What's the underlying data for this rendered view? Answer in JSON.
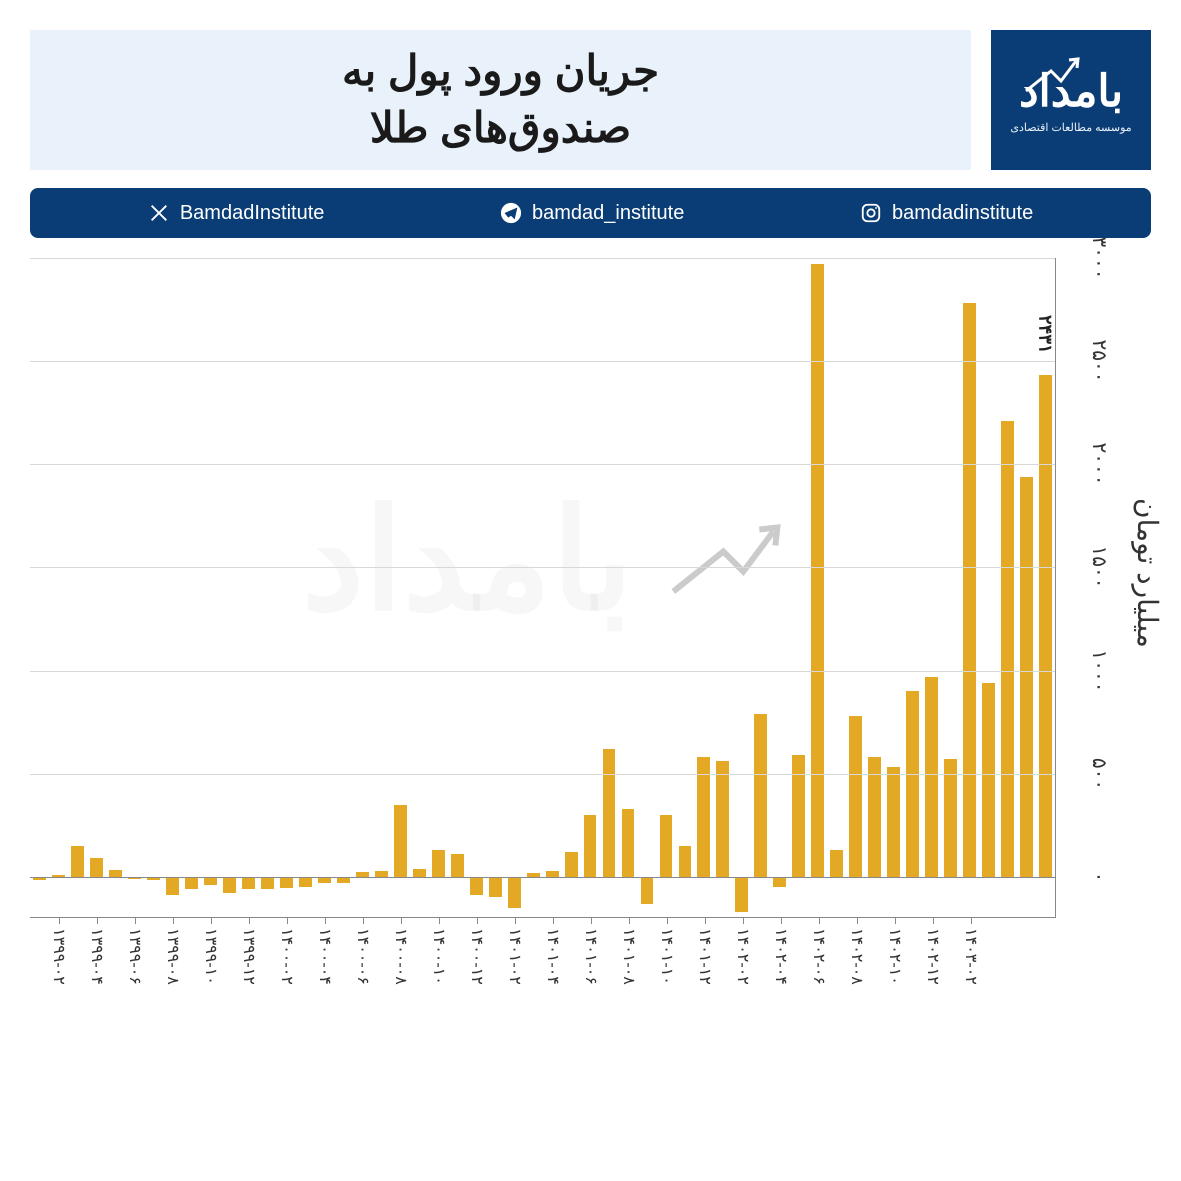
{
  "brand": {
    "name": "بامداد",
    "tagline": "موسسه مطالعات اقتصادی"
  },
  "title": {
    "line1": "جریان ورود پول به",
    "line2": "صندوق‌های طلا"
  },
  "social": {
    "x": {
      "handle": "BamdadInstitute"
    },
    "telegram": {
      "handle": "bamdad_institute"
    },
    "instagram": {
      "handle": "bamdadinstitute"
    }
  },
  "chart": {
    "type": "bar",
    "y_axis_title": "میلیارد تومان",
    "ylim_min": -200,
    "ylim_max": 3000,
    "ytick_step": 500,
    "y_tick_labels": [
      "۰",
      "۵۰۰",
      "۱۰۰۰",
      "۱۵۰۰",
      "۲۰۰۰",
      "۲۵۰۰",
      "۳۰۰۰"
    ],
    "bar_color": "#e3a924",
    "grid_color": "#d8d8d8",
    "axis_color": "#888888",
    "background_color": "#ffffff",
    "label_fontsize": 16,
    "last_value_label": "۲۴۳۱",
    "x_labels_visible": [
      "۱۳۹۹-۰۲",
      "۱۳۹۹-۰۴",
      "۱۳۹۹-۰۶",
      "۱۳۹۹-۰۸",
      "۱۳۹۹-۱۰",
      "۱۳۹۹-۱۲",
      "۱۴۰۰-۰۲",
      "۱۴۰۰-۰۴",
      "۱۴۰۰-۰۶",
      "۱۴۰۰-۰۸",
      "۱۴۰۰-۱۰",
      "۱۴۰۰-۱۲",
      "۱۴۰۱-۰۲",
      "۱۴۰۱-۰۴",
      "۱۴۰۱-۰۶",
      "۱۴۰۱-۰۸",
      "۱۴۰۱-۱۰",
      "۱۴۰۱-۱۲",
      "۱۴۰۲-۰۲",
      "۱۴۰۲-۰۴",
      "۱۴۰۲-۰۶",
      "۱۴۰۲-۰۸",
      "۱۴۰۲-۱۰",
      "۱۴۰۲-۱۲",
      "۱۴۰۳-۰۲"
    ],
    "series": [
      {
        "x": "۱۳۹۹-۰۱",
        "v": -15
      },
      {
        "x": "۱۳۹۹-۰۲",
        "v": 10
      },
      {
        "x": "۱۳۹۹-۰۳",
        "v": 150
      },
      {
        "x": "۱۳۹۹-۰۴",
        "v": 90
      },
      {
        "x": "۱۳۹۹-۰۵",
        "v": 35
      },
      {
        "x": "۱۳۹۹-۰۶",
        "v": -10
      },
      {
        "x": "۱۳۹۹-۰۷",
        "v": -15
      },
      {
        "x": "۱۳۹۹-۰۸",
        "v": -90
      },
      {
        "x": "۱۳۹۹-۰۹",
        "v": -60
      },
      {
        "x": "۱۳۹۹-۱۰",
        "v": -40
      },
      {
        "x": "۱۳۹۹-۱۱",
        "v": -80
      },
      {
        "x": "۱۳۹۹-۱۲",
        "v": -60
      },
      {
        "x": "۱۴۰۰-۰۱",
        "v": -60
      },
      {
        "x": "۱۴۰۰-۰۲",
        "v": -55
      },
      {
        "x": "۱۴۰۰-۰۳",
        "v": -50
      },
      {
        "x": "۱۴۰۰-۰۴",
        "v": -30
      },
      {
        "x": "۱۴۰۰-۰۵",
        "v": -30
      },
      {
        "x": "۱۴۰۰-۰۶",
        "v": 25
      },
      {
        "x": "۱۴۰۰-۰۷",
        "v": 30
      },
      {
        "x": "۱۴۰۰-۰۸",
        "v": 350
      },
      {
        "x": "۱۴۰۰-۰۹",
        "v": 40
      },
      {
        "x": "۱۴۰۰-۱۰",
        "v": 130
      },
      {
        "x": "۱۴۰۰-۱۱",
        "v": 110
      },
      {
        "x": "۱۴۰۰-۱۲",
        "v": -90
      },
      {
        "x": "۱۴۰۱-۰۱",
        "v": -100
      },
      {
        "x": "۱۴۰۱-۰۲",
        "v": -150
      },
      {
        "x": "۱۴۰۱-۰۳",
        "v": 20
      },
      {
        "x": "۱۴۰۱-۰۴",
        "v": 30
      },
      {
        "x": "۱۴۰۱-۰۵",
        "v": 120
      },
      {
        "x": "۱۴۰۱-۰۶",
        "v": 300
      },
      {
        "x": "۱۴۰۱-۰۷",
        "v": 620
      },
      {
        "x": "۱۴۰۱-۰۸",
        "v": 330
      },
      {
        "x": "۱۴۰۱-۰۹",
        "v": -130
      },
      {
        "x": "۱۴۰۱-۱۰",
        "v": 300
      },
      {
        "x": "۱۴۰۱-۱۱",
        "v": 150
      },
      {
        "x": "۱۴۰۱-۱۲",
        "v": 580
      },
      {
        "x": "۱۴۰۲-۰۱",
        "v": 560
      },
      {
        "x": "۱۴۰۲-۰۲",
        "v": -170
      },
      {
        "x": "۱۴۰۲-۰۳",
        "v": 790
      },
      {
        "x": "۱۴۰۲-۰۴",
        "v": -50
      },
      {
        "x": "۱۴۰۲-۰۵",
        "v": 590
      },
      {
        "x": "۱۴۰۲-۰۶",
        "v": 2970
      },
      {
        "x": "۱۴۰۲-۰۷",
        "v": 130
      },
      {
        "x": "۱۴۰۲-۰۸",
        "v": 780
      },
      {
        "x": "۱۴۰۲-۰۹",
        "v": 580
      },
      {
        "x": "۱۴۰۲-۱۰",
        "v": 530
      },
      {
        "x": "۱۴۰۲-۱۱",
        "v": 900
      },
      {
        "x": "۱۴۰۲-۱۲",
        "v": 970
      },
      {
        "x": "۱۴۰۳-۰۱",
        "v": 570
      },
      {
        "x": "۱۴۰۳-۰۲",
        "v": 2780
      },
      {
        "x": "۱۴۰۳-۰۳",
        "v": 940
      },
      {
        "x": "۱۴۰۳-۰۴",
        "v": 2210
      },
      {
        "x": "۱۴۰۳-۰۵",
        "v": 1940
      },
      {
        "x": "۱۴۰۳-۰۶",
        "v": 2431
      }
    ],
    "watermark_text": "بامداد"
  }
}
